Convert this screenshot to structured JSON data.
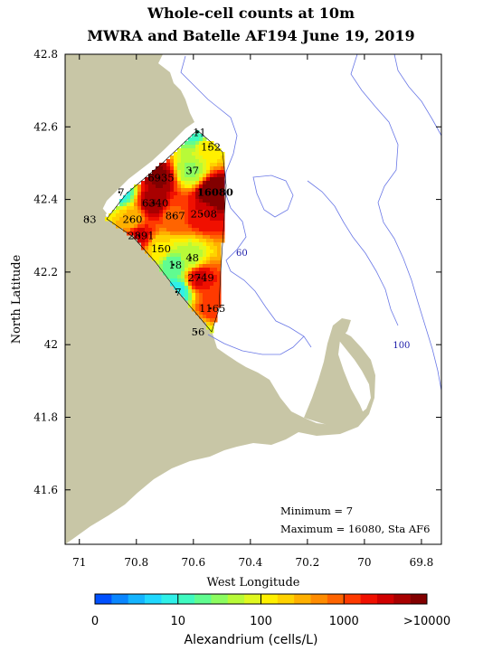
{
  "title_line1": "Whole-cell counts at 10m",
  "title_line2": "MWRA and Batelle AF194 June 19, 2019",
  "x_axis": {
    "label": "West Longitude",
    "ticks": [
      "71",
      "70.8",
      "70.6",
      "70.4",
      "70.2",
      "70",
      "69.8"
    ],
    "tick_values": [
      71.0,
      70.8,
      70.6,
      70.4,
      70.2,
      70.0,
      69.8
    ],
    "range": [
      71.05,
      69.73
    ]
  },
  "y_axis": {
    "label": "North Latitude",
    "ticks": [
      "42.8",
      "42.6",
      "42.4",
      "42.2",
      "42",
      "41.8",
      "41.6"
    ],
    "tick_values": [
      42.8,
      42.6,
      42.4,
      42.2,
      42.0,
      41.8,
      41.6
    ],
    "range": [
      41.45,
      42.8
    ]
  },
  "contour_labels": [
    {
      "text": "60",
      "lon": 70.43,
      "lat": 42.245
    },
    {
      "text": "100",
      "lon": 69.87,
      "lat": 41.99
    }
  ],
  "stations": [
    {
      "label": "11",
      "lon": 70.585,
      "lat": 42.585,
      "value": 11
    },
    {
      "label": "152",
      "lon": 70.545,
      "lat": 42.545,
      "value": 152
    },
    {
      "label": "37",
      "lon": 70.61,
      "lat": 42.48,
      "value": 37
    },
    {
      "label": "6935",
      "lon": 70.72,
      "lat": 42.46,
      "value": 6935
    },
    {
      "label": "7",
      "lon": 70.86,
      "lat": 42.42,
      "value": 7
    },
    {
      "label": "16080",
      "lon": 70.53,
      "lat": 42.42,
      "value": 16080,
      "bold": true
    },
    {
      "label": "6340",
      "lon": 70.74,
      "lat": 42.39,
      "value": 6340
    },
    {
      "label": "83",
      "lon": 70.97,
      "lat": 42.345,
      "value": 83
    },
    {
      "label": "260",
      "lon": 70.82,
      "lat": 42.345,
      "value": 260
    },
    {
      "label": "867",
      "lon": 70.67,
      "lat": 42.355,
      "value": 867
    },
    {
      "label": "2508",
      "lon": 70.57,
      "lat": 42.36,
      "value": 2508
    },
    {
      "label": "2891",
      "lon": 70.79,
      "lat": 42.3,
      "value": 2891
    },
    {
      "label": "150",
      "lon": 70.72,
      "lat": 42.265,
      "value": 150
    },
    {
      "label": "18",
      "lon": 70.67,
      "lat": 42.22,
      "value": 18
    },
    {
      "label": "48",
      "lon": 70.61,
      "lat": 42.24,
      "value": 48
    },
    {
      "label": "2749",
      "lon": 70.58,
      "lat": 42.185,
      "value": 2749
    },
    {
      "label": "7",
      "lon": 70.66,
      "lat": 42.145,
      "value": 7
    },
    {
      "label": "1165",
      "lon": 70.54,
      "lat": 42.1,
      "value": 1165
    },
    {
      "label": "56",
      "lon": 70.59,
      "lat": 42.035,
      "value": 56
    }
  ],
  "stats": {
    "minimum": "Minimum = 7",
    "maximum": "Maximum = 16080, Sta AF6"
  },
  "colorbar": {
    "label": "Alexandrium (cells/L)",
    "tick_labels": [
      "0",
      "10",
      "100",
      "1000",
      ">10000"
    ],
    "colors": [
      "#0050ff",
      "#0a86ff",
      "#14b4ff",
      "#20d8ff",
      "#2ff0e8",
      "#3ffac0",
      "#60fc90",
      "#8cfc60",
      "#b8fa38",
      "#e0f820",
      "#fff000",
      "#ffd200",
      "#ffb000",
      "#ff8c00",
      "#ff6400",
      "#ff3a00",
      "#f01000",
      "#d00000",
      "#a80000",
      "#820000"
    ]
  },
  "colors": {
    "land": "#c8c6a6",
    "water": "#ffffff",
    "contour": "#6a78e6",
    "frame": "#000000"
  }
}
